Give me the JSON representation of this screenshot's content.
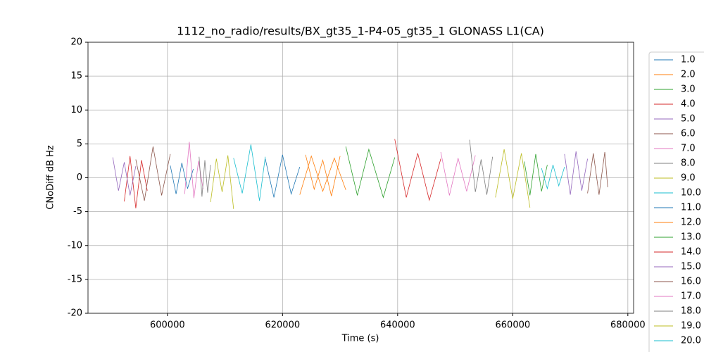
{
  "chart_data": {
    "type": "line",
    "title": "1112_no_radio/results/BX_gt35_1-P4-05_gt35_1 GLONASS L1(CA)",
    "x_label": "Time (s)",
    "y_label": "CNoDiff dB Hz",
    "xlim": [
      586200,
      681000
    ],
    "ylim": [
      -20,
      20
    ],
    "xticks": [
      600000,
      620000,
      640000,
      660000,
      680000
    ],
    "yticks": [
      -20,
      -15,
      -10,
      -5,
      0,
      5,
      10,
      15,
      20
    ],
    "grid": true,
    "series": [
      {
        "name": "1.0",
        "color": "#1f77b4",
        "x": [
          617000,
          618500,
          620000,
          621500,
          623000
        ],
        "values": [
          2.8,
          -2.9,
          3.4,
          -2.4,
          1.6
        ]
      },
      {
        "name": "2.0",
        "color": "#ff7f0e",
        "x": [
          623000,
          625000,
          627000,
          629000,
          631000
        ],
        "values": [
          -2.5,
          3.2,
          -2.0,
          2.9,
          -1.8
        ]
      },
      {
        "name": "3.0",
        "color": "#2ca02c",
        "x": [
          631000,
          633000,
          635000,
          637500,
          639500
        ],
        "values": [
          4.6,
          -2.6,
          4.2,
          -2.9,
          3.0
        ]
      },
      {
        "name": "4.0",
        "color": "#d62728",
        "x": [
          592500,
          593500,
          594500,
          595500,
          596500
        ],
        "values": [
          -3.5,
          3.2,
          -4.5,
          2.6,
          -1.9
        ]
      },
      {
        "name": "5.0",
        "color": "#9467bd",
        "x": [
          590500,
          591500,
          592500,
          593500,
          594500
        ],
        "values": [
          3.0,
          -1.9,
          2.3,
          -2.6,
          1.7
        ]
      },
      {
        "name": "6.0",
        "color": "#8c564b",
        "x": [
          594500,
          596000,
          597500,
          599000,
          600500
        ],
        "values": [
          2.7,
          -3.4,
          4.6,
          -2.6,
          3.5
        ]
      },
      {
        "name": "7.0",
        "color": "#e377c2",
        "x": [
          603000,
          603800,
          604600,
          605400,
          606200
        ],
        "values": [
          -2.4,
          5.3,
          -3.0,
          2.5,
          -1.7
        ]
      },
      {
        "name": "8.0",
        "color": "#7f7f7f",
        "x": [
          605500,
          606000,
          606500,
          607000,
          607500
        ],
        "values": [
          3.1,
          -2.8,
          2.6,
          -2.2,
          1.9
        ]
      },
      {
        "name": "9.0",
        "color": "#bcbd22",
        "x": [
          607500,
          608500,
          609500,
          610500,
          611500
        ],
        "values": [
          -3.6,
          2.8,
          -2.1,
          3.3,
          -4.6
        ]
      },
      {
        "name": "10.0",
        "color": "#17becf",
        "x": [
          611500,
          613000,
          614500,
          616000,
          617000
        ],
        "values": [
          2.9,
          -2.3,
          4.9,
          -3.4,
          3.1
        ]
      },
      {
        "name": "11.0",
        "color": "#1f77b4",
        "x": [
          600500,
          601500,
          602500,
          603500,
          604500
        ],
        "values": [
          1.8,
          -2.4,
          2.2,
          -1.6,
          1.3
        ]
      },
      {
        "name": "12.0",
        "color": "#ff7f0e",
        "x": [
          624000,
          625500,
          627000,
          628500,
          630000
        ],
        "values": [
          3.4,
          -1.7,
          2.6,
          -2.7,
          3.2
        ]
      },
      {
        "name": "13.0",
        "color": "#2ca02c",
        "x": [
          662000,
          663000,
          664000,
          665000,
          666000
        ],
        "values": [
          2.4,
          -2.6,
          3.5,
          -2.0,
          1.9
        ]
      },
      {
        "name": "14.0",
        "color": "#d62728",
        "x": [
          639500,
          641500,
          643500,
          645500,
          647500
        ],
        "values": [
          5.7,
          -2.9,
          3.6,
          -3.3,
          2.8
        ]
      },
      {
        "name": "15.0",
        "color": "#9467bd",
        "x": [
          669000,
          670000,
          671000,
          672000,
          673000
        ],
        "values": [
          3.5,
          -2.5,
          3.9,
          -1.9,
          2.8
        ]
      },
      {
        "name": "16.0",
        "color": "#8c564b",
        "x": [
          673000,
          674000,
          675000,
          676000,
          676500
        ],
        "values": [
          -2.3,
          3.6,
          -2.5,
          3.8,
          -1.4
        ]
      },
      {
        "name": "17.0",
        "color": "#e377c2",
        "x": [
          647500,
          649000,
          650500,
          652000,
          653500
        ],
        "values": [
          3.8,
          -2.6,
          2.9,
          -2.0,
          3.3
        ]
      },
      {
        "name": "18.0",
        "color": "#7f7f7f",
        "x": [
          652500,
          653500,
          654500,
          655500,
          656500
        ],
        "values": [
          5.6,
          -2.1,
          2.7,
          -2.5,
          3.1
        ]
      },
      {
        "name": "19.0",
        "color": "#bcbd22",
        "x": [
          657000,
          658500,
          660000,
          661500,
          663000
        ],
        "values": [
          -2.9,
          4.2,
          -3.1,
          3.6,
          -4.4
        ]
      },
      {
        "name": "20.0",
        "color": "#17becf",
        "x": [
          665000,
          666000,
          667000,
          668000,
          669000
        ],
        "values": [
          1.4,
          -1.6,
          1.9,
          -1.2,
          1.6
        ]
      }
    ]
  }
}
